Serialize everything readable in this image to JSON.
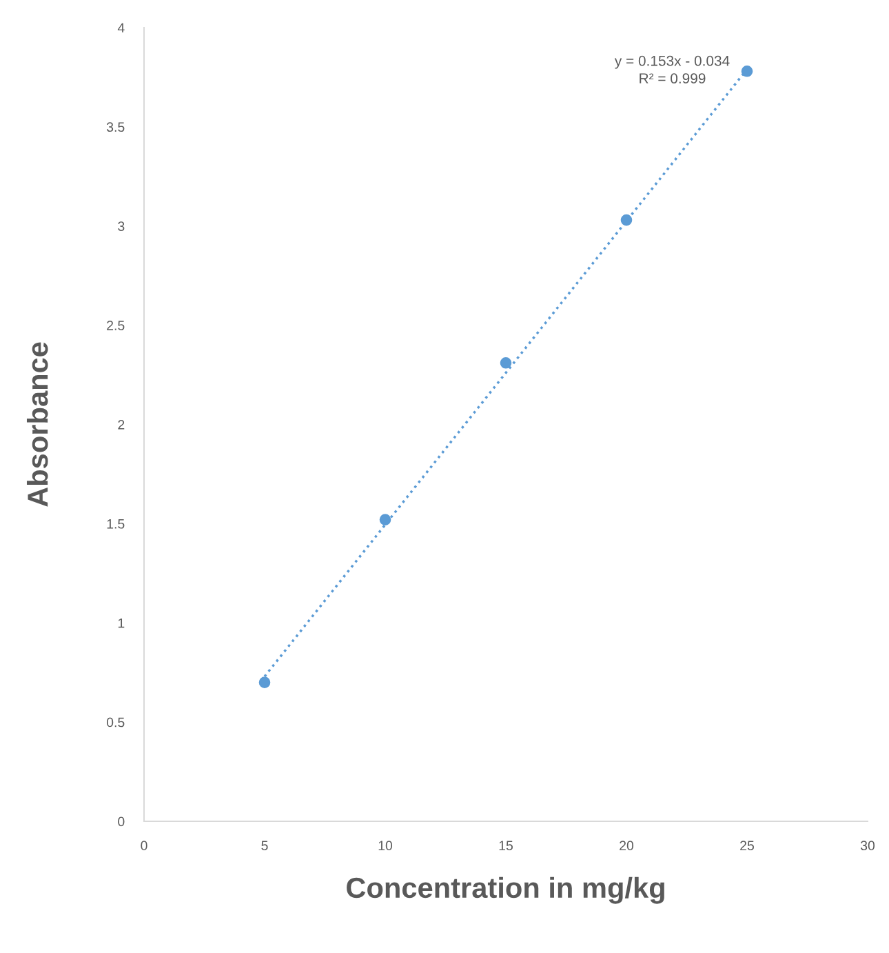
{
  "chart_data": {
    "type": "scatter",
    "xlabel": "Concentration in mg/kg",
    "ylabel": "Absorbance",
    "xlim": [
      0,
      30
    ],
    "xticks": [
      0,
      5,
      10,
      15,
      20,
      25,
      30
    ],
    "ylim": [
      0,
      4
    ],
    "yticks": [
      0,
      0.5,
      1,
      1.5,
      2,
      2.5,
      3,
      3.5,
      4
    ],
    "grid": false,
    "series": [
      {
        "color": "#5b9bd5",
        "marker": "circle",
        "x": [
          5,
          10,
          15,
          20,
          25
        ],
        "values": [
          0.7,
          1.52,
          2.31,
          3.03,
          3.78
        ]
      },
      {
        "type": "line",
        "color": "#5b9bd5",
        "line_style": "dotted",
        "marker": "none",
        "x": [
          5,
          25
        ],
        "values": [
          0.73,
          3.79
        ]
      }
    ],
    "annotations": [
      "y = 0.153x - 0.034\nR² = 0.999"
    ]
  }
}
